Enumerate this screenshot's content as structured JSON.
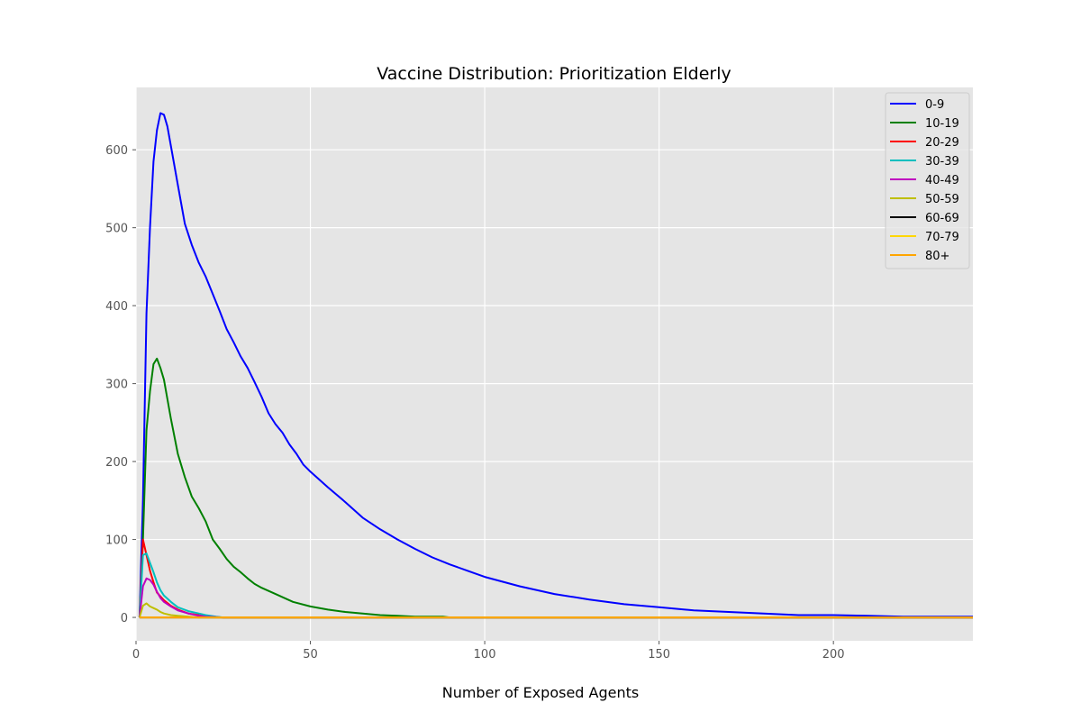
{
  "chart_data": {
    "type": "line",
    "title": "Vaccine Distribution: Prioritization Elderly",
    "xlabel": "Number of Exposed Agents",
    "ylabel": "",
    "xlim": [
      0,
      240
    ],
    "ylim": [
      -30,
      680
    ],
    "xticks": [
      0,
      50,
      100,
      150,
      200
    ],
    "yticks": [
      0,
      100,
      200,
      300,
      400,
      500,
      600
    ],
    "grid": true,
    "legend_position": "top-right",
    "background": "#e5e5e5",
    "series": [
      {
        "name": "0-9",
        "color": "#0000ff",
        "points": [
          [
            1,
            0
          ],
          [
            2,
            150
          ],
          [
            3,
            390
          ],
          [
            4,
            500
          ],
          [
            5,
            585
          ],
          [
            6,
            625
          ],
          [
            7,
            647
          ],
          [
            8,
            645
          ],
          [
            9,
            630
          ],
          [
            10,
            605
          ],
          [
            12,
            555
          ],
          [
            14,
            505
          ],
          [
            16,
            478
          ],
          [
            18,
            455
          ],
          [
            20,
            437
          ],
          [
            22,
            415
          ],
          [
            24,
            393
          ],
          [
            26,
            370
          ],
          [
            28,
            353
          ],
          [
            30,
            335
          ],
          [
            32,
            320
          ],
          [
            34,
            302
          ],
          [
            36,
            283
          ],
          [
            38,
            262
          ],
          [
            40,
            248
          ],
          [
            42,
            237
          ],
          [
            44,
            222
          ],
          [
            46,
            210
          ],
          [
            48,
            196
          ],
          [
            50,
            187
          ],
          [
            55,
            167
          ],
          [
            60,
            148
          ],
          [
            65,
            128
          ],
          [
            70,
            113
          ],
          [
            75,
            100
          ],
          [
            80,
            88
          ],
          [
            85,
            77
          ],
          [
            90,
            68
          ],
          [
            95,
            60
          ],
          [
            100,
            52
          ],
          [
            110,
            40
          ],
          [
            120,
            30
          ],
          [
            130,
            23
          ],
          [
            140,
            17
          ],
          [
            150,
            13
          ],
          [
            160,
            9
          ],
          [
            170,
            7
          ],
          [
            180,
            5
          ],
          [
            190,
            3
          ],
          [
            200,
            3
          ],
          [
            210,
            2
          ],
          [
            220,
            1
          ],
          [
            230,
            1
          ],
          [
            240,
            1
          ]
        ]
      },
      {
        "name": "10-19",
        "color": "#008000",
        "points": [
          [
            1,
            0
          ],
          [
            2,
            100
          ],
          [
            3,
            240
          ],
          [
            4,
            290
          ],
          [
            5,
            325
          ],
          [
            6,
            332
          ],
          [
            7,
            320
          ],
          [
            8,
            305
          ],
          [
            10,
            255
          ],
          [
            12,
            210
          ],
          [
            14,
            180
          ],
          [
            16,
            155
          ],
          [
            18,
            140
          ],
          [
            20,
            123
          ],
          [
            22,
            100
          ],
          [
            24,
            88
          ],
          [
            26,
            75
          ],
          [
            28,
            65
          ],
          [
            30,
            58
          ],
          [
            32,
            50
          ],
          [
            34,
            43
          ],
          [
            36,
            38
          ],
          [
            40,
            30
          ],
          [
            45,
            20
          ],
          [
            50,
            14
          ],
          [
            55,
            10
          ],
          [
            60,
            7
          ],
          [
            65,
            5
          ],
          [
            70,
            3
          ],
          [
            75,
            2
          ],
          [
            80,
            1
          ],
          [
            88,
            1
          ],
          [
            90,
            0
          ],
          [
            240,
            0
          ]
        ]
      },
      {
        "name": "20-29",
        "color": "#ff0000",
        "points": [
          [
            1,
            0
          ],
          [
            2,
            100
          ],
          [
            3,
            80
          ],
          [
            4,
            60
          ],
          [
            5,
            45
          ],
          [
            6,
            32
          ],
          [
            8,
            22
          ],
          [
            10,
            15
          ],
          [
            12,
            10
          ],
          [
            15,
            5
          ],
          [
            18,
            3
          ],
          [
            20,
            1
          ],
          [
            25,
            0
          ],
          [
            240,
            0
          ]
        ]
      },
      {
        "name": "30-39",
        "color": "#00bfbf",
        "points": [
          [
            1,
            0
          ],
          [
            2,
            80
          ],
          [
            3,
            82
          ],
          [
            4,
            70
          ],
          [
            5,
            58
          ],
          [
            6,
            45
          ],
          [
            7,
            35
          ],
          [
            8,
            28
          ],
          [
            10,
            20
          ],
          [
            12,
            13
          ],
          [
            15,
            8
          ],
          [
            18,
            5
          ],
          [
            20,
            3
          ],
          [
            23,
            1
          ],
          [
            25,
            0
          ],
          [
            240,
            0
          ]
        ]
      },
      {
        "name": "40-49",
        "color": "#bf00bf",
        "points": [
          [
            1,
            0
          ],
          [
            2,
            40
          ],
          [
            3,
            50
          ],
          [
            4,
            48
          ],
          [
            5,
            42
          ],
          [
            6,
            33
          ],
          [
            7,
            25
          ],
          [
            8,
            20
          ],
          [
            10,
            14
          ],
          [
            12,
            9
          ],
          [
            15,
            5
          ],
          [
            18,
            2
          ],
          [
            20,
            1
          ],
          [
            25,
            0
          ],
          [
            240,
            0
          ]
        ]
      },
      {
        "name": "50-59",
        "color": "#bfbf00",
        "points": [
          [
            1,
            0
          ],
          [
            2,
            15
          ],
          [
            3,
            18
          ],
          [
            4,
            14
          ],
          [
            5,
            12
          ],
          [
            6,
            10
          ],
          [
            7,
            7
          ],
          [
            8,
            5
          ],
          [
            10,
            3
          ],
          [
            12,
            2
          ],
          [
            15,
            1
          ],
          [
            18,
            0
          ],
          [
            240,
            0
          ]
        ]
      },
      {
        "name": "60-69",
        "color": "#000000",
        "points": [
          [
            1,
            0
          ],
          [
            240,
            0
          ]
        ]
      },
      {
        "name": "70-79",
        "color": "#ffd700",
        "points": [
          [
            1,
            0
          ],
          [
            240,
            0
          ]
        ]
      },
      {
        "name": "80+",
        "color": "#ffa500",
        "points": [
          [
            1,
            0
          ],
          [
            240,
            0
          ]
        ]
      }
    ]
  }
}
